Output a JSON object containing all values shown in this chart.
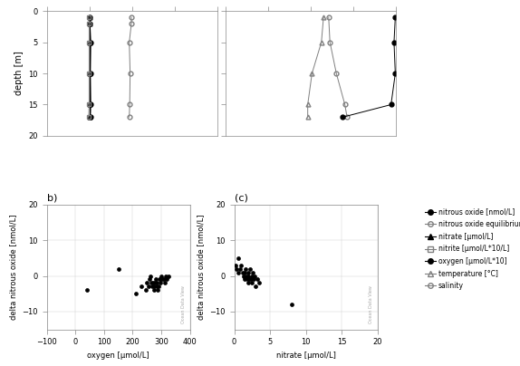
{
  "panel_a_left": {
    "depth_n2o": [
      1,
      2,
      5,
      10,
      15,
      17
    ],
    "n2o_vals": [
      0.0,
      0.1,
      0.3,
      0.2,
      0.3,
      0.2
    ],
    "depth_n2o_eq": [
      1,
      2,
      5,
      10,
      15,
      17
    ],
    "n2o_eq_vals": [
      9.8,
      9.8,
      9.3,
      9.5,
      9.4,
      9.3
    ],
    "depth_nitrate": [
      1,
      2,
      5,
      10,
      15,
      17
    ],
    "nitrate_vals": [
      0.1,
      0.1,
      0.1,
      0.1,
      0.1,
      0.1
    ],
    "depth_nitrite": [
      1,
      2,
      5,
      10,
      15,
      17
    ],
    "nitrite_vals": [
      -0.2,
      -0.1,
      -0.1,
      -0.1,
      -0.1,
      -0.2
    ]
  },
  "panel_a_right": {
    "depth": [
      1,
      5,
      10,
      15,
      17
    ],
    "temp_vals": [
      13.0,
      12.5,
      10.3,
      9.3,
      9.3
    ],
    "sal_vals": [
      14.2,
      14.5,
      16.0,
      18.0,
      18.5
    ],
    "oxy_vals": [
      29.8,
      29.5,
      29.8,
      28.8,
      17.5
    ]
  },
  "panel_b": {
    "oxygen": [
      40,
      150,
      210,
      230,
      245,
      250,
      255,
      260,
      262,
      265,
      268,
      270,
      273,
      275,
      278,
      280,
      283,
      285,
      288,
      290,
      292,
      295,
      298,
      300,
      303,
      308,
      312,
      315,
      320,
      325
    ],
    "delta_n2o": [
      -4,
      2,
      -5,
      -3,
      -4,
      -2,
      -3,
      -1,
      0,
      -2,
      -3,
      -2,
      -4,
      -3,
      -2,
      -1,
      -3,
      -2,
      -4,
      -3,
      -1,
      -1,
      -2,
      0,
      -1,
      -1,
      -2,
      0,
      -1,
      0
    ]
  },
  "panel_c": {
    "nitrate": [
      0.2,
      0.3,
      0.5,
      0.6,
      0.8,
      1.0,
      1.2,
      1.3,
      1.5,
      1.5,
      1.6,
      1.7,
      1.8,
      1.9,
      2.0,
      2.0,
      2.1,
      2.2,
      2.3,
      2.4,
      2.5,
      2.6,
      2.7,
      2.8,
      3.0,
      3.2,
      3.5,
      8.0
    ],
    "delta_n2o": [
      3,
      2,
      1,
      5,
      2,
      3,
      1,
      0,
      -1,
      1,
      2,
      0,
      -1,
      -2,
      0,
      1,
      -1,
      2,
      -1,
      0,
      -2,
      1,
      -1,
      0,
      -3,
      -1,
      -2,
      -8
    ]
  },
  "legend_items": [
    {
      "label": "nitrous oxide [nmol/L]",
      "marker": "o",
      "color": "black",
      "mfc": "black",
      "ls": "-"
    },
    {
      "label": "nitrous oxide equilibrium [nmol/L]",
      "marker": "o",
      "color": "gray",
      "mfc": "none",
      "ls": "-"
    },
    {
      "label": "nitrate [μmol/L]",
      "marker": "^",
      "color": "black",
      "mfc": "black",
      "ls": "-"
    },
    {
      "label": "nitrite [μmol/L*10/L]",
      "marker": "s",
      "color": "gray",
      "mfc": "none",
      "ls": "-"
    },
    {
      "label": "oxygen [μmol/L*10]",
      "marker": "o",
      "color": "black",
      "mfc": "black",
      "ls": "-"
    },
    {
      "label": "temperature [°C]",
      "marker": "^",
      "color": "gray",
      "mfc": "none",
      "ls": "-"
    },
    {
      "label": "salinity",
      "marker": "o",
      "color": "gray",
      "mfc": "none",
      "ls": "-"
    }
  ]
}
